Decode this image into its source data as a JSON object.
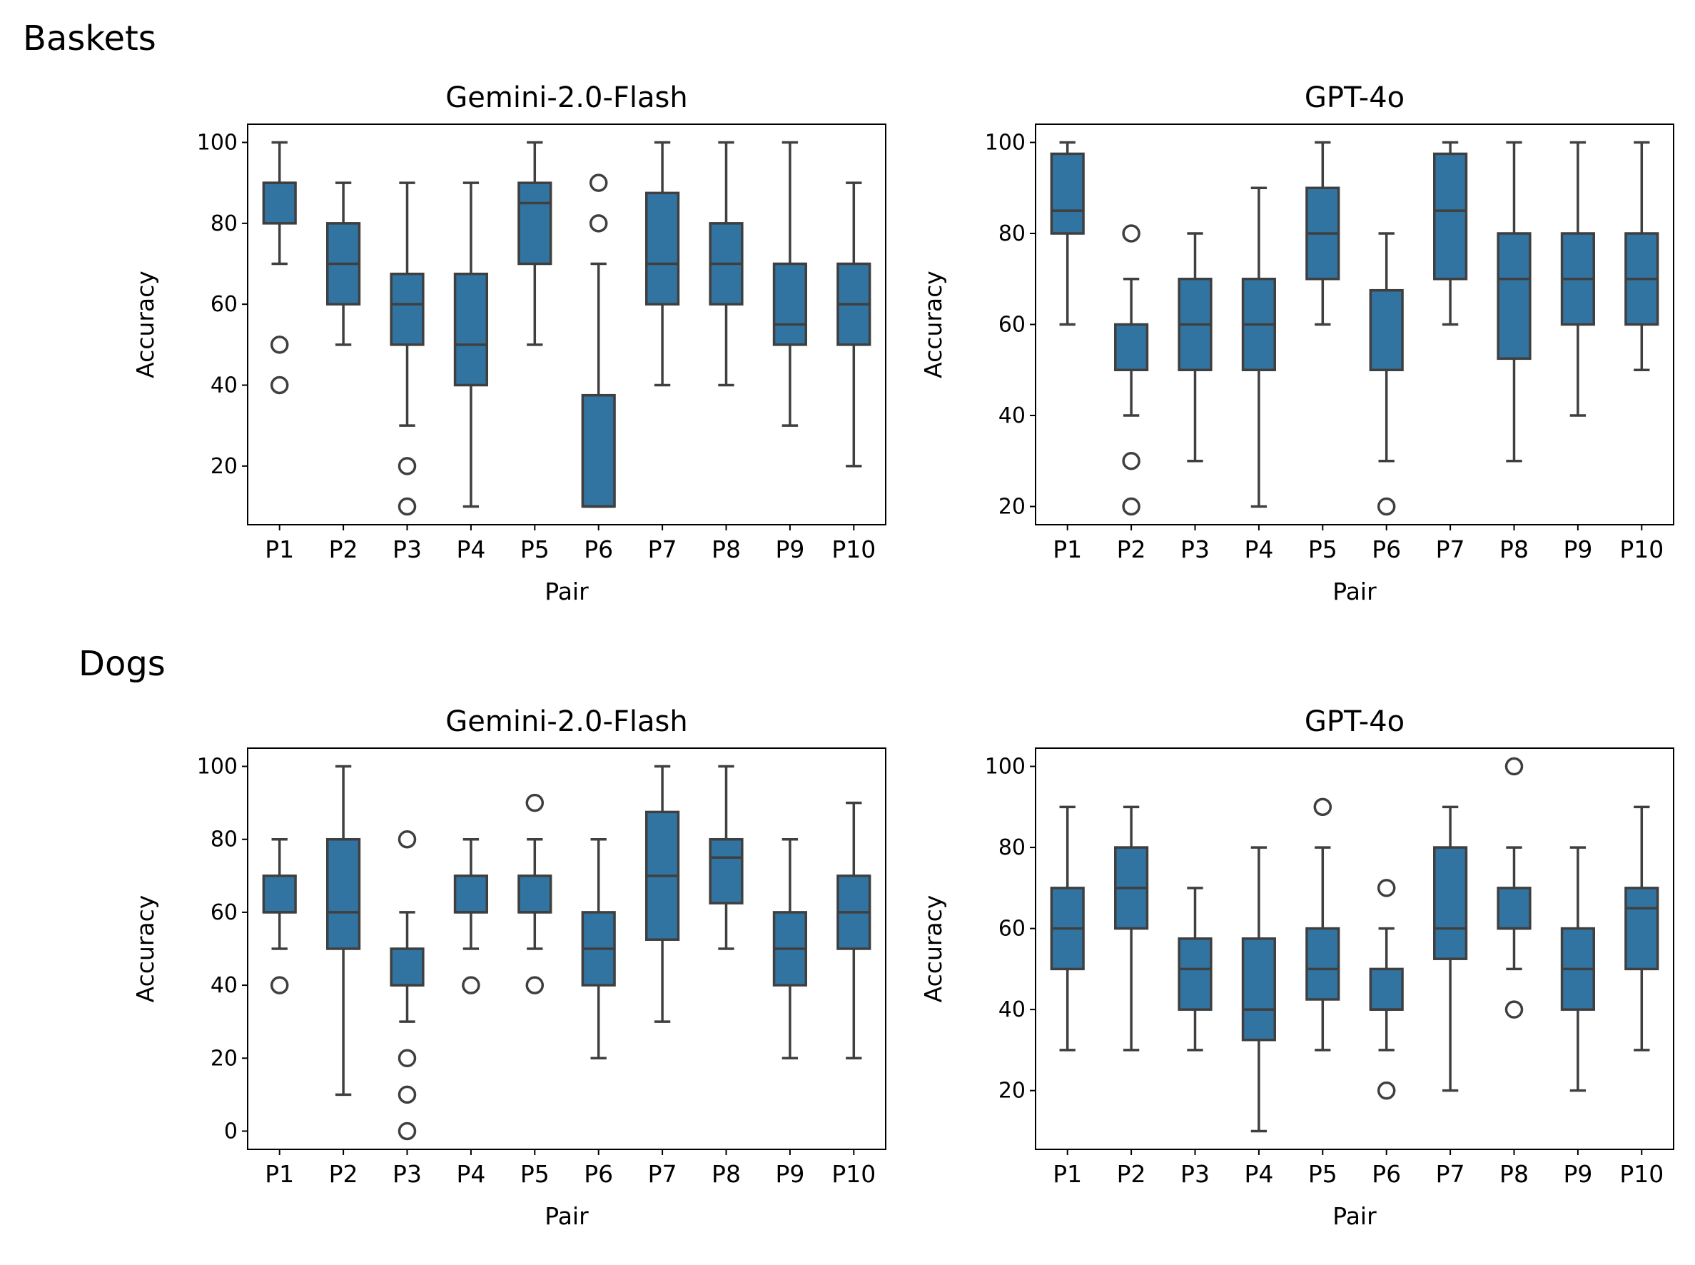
{
  "colors": {
    "box_fill": "#3274a1",
    "box_edge": "#3f3f3f",
    "axes": "#000000"
  },
  "chart_data": [
    {
      "type": "box",
      "group": "Baskets",
      "title": "Gemini-2.0-Flash",
      "xlabel": "Pair",
      "ylabel": "Accuracy",
      "ylim": [
        5.5,
        104.5
      ],
      "yticks": [
        20,
        40,
        60,
        80,
        100
      ],
      "categories": [
        "P1",
        "P2",
        "P3",
        "P4",
        "P5",
        "P6",
        "P7",
        "P8",
        "P9",
        "P10"
      ],
      "boxes": [
        {
          "q1": 80,
          "median": 90,
          "q3": 90,
          "whislo": 70,
          "whishi": 100,
          "fliers": [
            50,
            40
          ]
        },
        {
          "q1": 60,
          "median": 70,
          "q3": 80,
          "whislo": 50,
          "whishi": 90,
          "fliers": []
        },
        {
          "q1": 50,
          "median": 60,
          "q3": 67.5,
          "whislo": 30,
          "whishi": 90,
          "fliers": [
            20,
            10
          ]
        },
        {
          "q1": 40,
          "median": 50,
          "q3": 67.5,
          "whislo": 10,
          "whishi": 90,
          "fliers": []
        },
        {
          "q1": 70,
          "median": 85,
          "q3": 90,
          "whislo": 50,
          "whishi": 100,
          "fliers": []
        },
        {
          "q1": 10,
          "median": 10,
          "q3": 37.5,
          "whislo": 10,
          "whishi": 70,
          "fliers": [
            90,
            80
          ]
        },
        {
          "q1": 60,
          "median": 70,
          "q3": 87.5,
          "whislo": 40,
          "whishi": 100,
          "fliers": []
        },
        {
          "q1": 60,
          "median": 70,
          "q3": 80,
          "whislo": 40,
          "whishi": 100,
          "fliers": []
        },
        {
          "q1": 50,
          "median": 55,
          "q3": 70,
          "whislo": 30,
          "whishi": 100,
          "fliers": []
        },
        {
          "q1": 50,
          "median": 60,
          "q3": 70,
          "whislo": 20,
          "whishi": 90,
          "fliers": []
        }
      ]
    },
    {
      "type": "box",
      "group": "Baskets",
      "title": "GPT-4o",
      "xlabel": "Pair",
      "ylabel": "Accuracy",
      "ylim": [
        16,
        104
      ],
      "yticks": [
        20,
        40,
        60,
        80,
        100
      ],
      "categories": [
        "P1",
        "P2",
        "P3",
        "P4",
        "P5",
        "P6",
        "P7",
        "P8",
        "P9",
        "P10"
      ],
      "boxes": [
        {
          "q1": 80,
          "median": 85,
          "q3": 97.5,
          "whislo": 60,
          "whishi": 100,
          "fliers": []
        },
        {
          "q1": 50,
          "median": 50,
          "q3": 60,
          "whislo": 40,
          "whishi": 70,
          "fliers": [
            80,
            30,
            20
          ]
        },
        {
          "q1": 50,
          "median": 60,
          "q3": 70,
          "whislo": 30,
          "whishi": 80,
          "fliers": []
        },
        {
          "q1": 50,
          "median": 60,
          "q3": 70,
          "whislo": 20,
          "whishi": 90,
          "fliers": []
        },
        {
          "q1": 70,
          "median": 80,
          "q3": 90,
          "whislo": 60,
          "whishi": 100,
          "fliers": []
        },
        {
          "q1": 50,
          "median": 50,
          "q3": 67.5,
          "whislo": 30,
          "whishi": 80,
          "fliers": [
            20
          ]
        },
        {
          "q1": 70,
          "median": 85,
          "q3": 97.5,
          "whislo": 60,
          "whishi": 100,
          "fliers": []
        },
        {
          "q1": 52.5,
          "median": 70,
          "q3": 80,
          "whislo": 30,
          "whishi": 100,
          "fliers": []
        },
        {
          "q1": 60,
          "median": 70,
          "q3": 80,
          "whislo": 40,
          "whishi": 100,
          "fliers": []
        },
        {
          "q1": 60,
          "median": 70,
          "q3": 80,
          "whislo": 50,
          "whishi": 100,
          "fliers": []
        }
      ]
    },
    {
      "type": "box",
      "group": "Dogs",
      "title": "Gemini-2.0-Flash",
      "xlabel": "Pair",
      "ylabel": "Accuracy",
      "ylim": [
        -5,
        105
      ],
      "yticks": [
        0,
        20,
        40,
        60,
        80,
        100
      ],
      "categories": [
        "P1",
        "P2",
        "P3",
        "P4",
        "P5",
        "P6",
        "P7",
        "P8",
        "P9",
        "P10"
      ],
      "boxes": [
        {
          "q1": 60,
          "median": 60,
          "q3": 70,
          "whislo": 50,
          "whishi": 80,
          "fliers": [
            40
          ]
        },
        {
          "q1": 50,
          "median": 60,
          "q3": 80,
          "whislo": 10,
          "whishi": 100,
          "fliers": []
        },
        {
          "q1": 40,
          "median": 40,
          "q3": 50,
          "whislo": 30,
          "whishi": 60,
          "fliers": [
            80,
            20,
            10,
            0
          ]
        },
        {
          "q1": 60,
          "median": 60,
          "q3": 70,
          "whislo": 50,
          "whishi": 80,
          "fliers": [
            40
          ]
        },
        {
          "q1": 60,
          "median": 60,
          "q3": 70,
          "whislo": 50,
          "whishi": 80,
          "fliers": [
            90,
            40
          ]
        },
        {
          "q1": 40,
          "median": 50,
          "q3": 60,
          "whislo": 20,
          "whishi": 80,
          "fliers": []
        },
        {
          "q1": 52.5,
          "median": 70,
          "q3": 87.5,
          "whislo": 30,
          "whishi": 100,
          "fliers": []
        },
        {
          "q1": 62.5,
          "median": 75,
          "q3": 80,
          "whislo": 50,
          "whishi": 100,
          "fliers": []
        },
        {
          "q1": 40,
          "median": 50,
          "q3": 60,
          "whislo": 20,
          "whishi": 80,
          "fliers": []
        },
        {
          "q1": 50,
          "median": 60,
          "q3": 70,
          "whislo": 20,
          "whishi": 90,
          "fliers": []
        }
      ]
    },
    {
      "type": "box",
      "group": "Dogs",
      "title": "GPT-4o",
      "xlabel": "Pair",
      "ylabel": "Accuracy",
      "ylim": [
        5.5,
        104.5
      ],
      "yticks": [
        20,
        40,
        60,
        80,
        100
      ],
      "categories": [
        "P1",
        "P2",
        "P3",
        "P4",
        "P5",
        "P6",
        "P7",
        "P8",
        "P9",
        "P10"
      ],
      "boxes": [
        {
          "q1": 50,
          "median": 60,
          "q3": 70,
          "whislo": 30,
          "whishi": 90,
          "fliers": []
        },
        {
          "q1": 60,
          "median": 70,
          "q3": 80,
          "whislo": 30,
          "whishi": 90,
          "fliers": []
        },
        {
          "q1": 40,
          "median": 50,
          "q3": 57.5,
          "whislo": 30,
          "whishi": 70,
          "fliers": []
        },
        {
          "q1": 32.5,
          "median": 40,
          "q3": 57.5,
          "whislo": 10,
          "whishi": 80,
          "fliers": []
        },
        {
          "q1": 42.5,
          "median": 50,
          "q3": 60,
          "whislo": 30,
          "whishi": 80,
          "fliers": [
            90
          ]
        },
        {
          "q1": 40,
          "median": 40,
          "q3": 50,
          "whislo": 30,
          "whishi": 60,
          "fliers": [
            70,
            20
          ]
        },
        {
          "q1": 52.5,
          "median": 60,
          "q3": 80,
          "whislo": 20,
          "whishi": 90,
          "fliers": []
        },
        {
          "q1": 60,
          "median": 60,
          "q3": 70,
          "whislo": 50,
          "whishi": 80,
          "fliers": [
            100,
            40
          ]
        },
        {
          "q1": 40,
          "median": 50,
          "q3": 60,
          "whislo": 20,
          "whishi": 80,
          "fliers": []
        },
        {
          "q1": 50,
          "median": 65,
          "q3": 70,
          "whislo": 30,
          "whishi": 90,
          "fliers": []
        }
      ]
    }
  ],
  "groups": [
    "Baskets",
    "Dogs"
  ]
}
